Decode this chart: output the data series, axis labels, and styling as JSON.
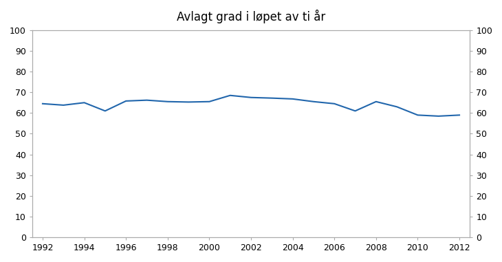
{
  "title": "Avlagt grad i løpet av ti år",
  "x_values": [
    1992,
    1993,
    1994,
    1995,
    1996,
    1997,
    1998,
    1999,
    2000,
    2001,
    2002,
    2003,
    2004,
    2005,
    2006,
    2007,
    2008,
    2009,
    2010,
    2011,
    2012
  ],
  "y_values": [
    64.5,
    63.8,
    65.0,
    61.0,
    65.8,
    66.2,
    65.5,
    65.3,
    65.5,
    68.5,
    67.5,
    67.2,
    66.8,
    65.5,
    64.5,
    61.0,
    65.5,
    63.0,
    59.0,
    58.5,
    59.0
  ],
  "line_color": "#2166ac",
  "ylim": [
    0,
    100
  ],
  "yticks": [
    0,
    10,
    20,
    30,
    40,
    50,
    60,
    70,
    80,
    90,
    100
  ],
  "xlim": [
    1991.5,
    2012.5
  ],
  "xticks": [
    1992,
    1994,
    1996,
    1998,
    2000,
    2002,
    2004,
    2006,
    2008,
    2010,
    2012
  ],
  "background_color": "#ffffff",
  "spine_color": "#aaaaaa",
  "tick_color": "#aaaaaa",
  "title_fontsize": 12,
  "tick_fontsize": 9,
  "line_width": 1.5,
  "fig_width": 7.3,
  "fig_height": 3.81,
  "dpi": 100
}
